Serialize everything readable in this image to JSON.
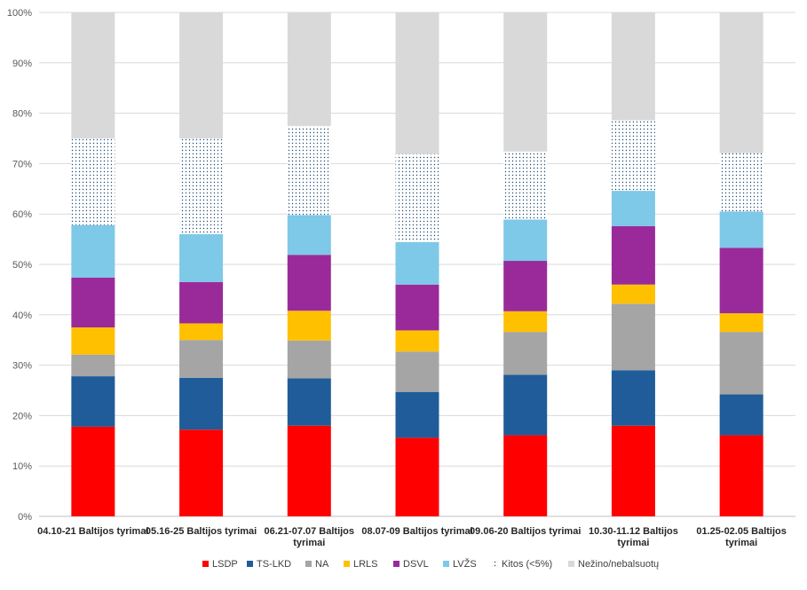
{
  "chart_data": {
    "type": "bar",
    "stacked": true,
    "categories": [
      "04.10-21 Baltijos tyrimai",
      "05.16-25 Baltijos tyrimai",
      "06.21-07.07 Baltijos tyrimai",
      "08.07-09 Baltijos tyrimai",
      "09.06-20 Baltijos tyrimai",
      "10.30-11.12 Baltijos tyrimai",
      "01.25-02.05 Baltijos tyrimai"
    ],
    "category_lines": [
      [
        "04.10-21 Baltijos tyrimai"
      ],
      [
        "05.16-25 Baltijos tyrimai"
      ],
      [
        "06.21-07.07 Baltijos",
        "tyrimai"
      ],
      [
        "08.07-09 Baltijos tyrimai"
      ],
      [
        "09.06-20 Baltijos tyrimai"
      ],
      [
        "10.30-11.12 Baltijos",
        "tyrimai"
      ],
      [
        "01.25-02.05 Baltijos",
        "tyrimai"
      ]
    ],
    "series": [
      {
        "name": "LSDP",
        "color": "#ff0000",
        "pattern": "solid",
        "values": [
          17.8,
          17.2,
          18.0,
          15.6,
          16.1,
          18.0,
          16.1
        ]
      },
      {
        "name": "TS-LKD",
        "color": "#1f5c99",
        "pattern": "solid",
        "values": [
          10.0,
          10.3,
          9.4,
          9.1,
          12.0,
          11.0,
          8.1
        ]
      },
      {
        "name": "NA",
        "color": "#a5a5a5",
        "pattern": "solid",
        "values": [
          4.3,
          7.5,
          7.5,
          8.0,
          8.5,
          13.2,
          12.4
        ]
      },
      {
        "name": "LRLS",
        "color": "#ffc000",
        "pattern": "solid",
        "values": [
          5.4,
          3.3,
          5.9,
          4.2,
          4.1,
          3.8,
          3.7
        ]
      },
      {
        "name": "DSVL",
        "color": "#9a2a9a",
        "pattern": "solid",
        "values": [
          9.9,
          8.2,
          11.1,
          9.1,
          10.0,
          11.6,
          13.0
        ]
      },
      {
        "name": "LVŽS",
        "color": "#7ec8e8",
        "pattern": "solid",
        "values": [
          10.4,
          9.5,
          7.9,
          8.4,
          8.2,
          7.0,
          7.2
        ]
      },
      {
        "name": "Kitos (<5%)",
        "color": "#1f4e79",
        "pattern": "dots",
        "values": [
          17.2,
          19.0,
          17.7,
          17.5,
          13.5,
          14.0,
          11.6
        ]
      },
      {
        "name": "Nežino/nebalsuotų",
        "color": "#d9d9d9",
        "pattern": "solid",
        "values": [
          25.0,
          25.0,
          22.5,
          28.1,
          27.6,
          21.4,
          27.9
        ]
      }
    ],
    "y_ticks": [
      "0%",
      "10%",
      "20%",
      "30%",
      "40%",
      "50%",
      "60%",
      "70%",
      "80%",
      "90%",
      "100%"
    ],
    "ylim": [
      0,
      100
    ],
    "grid": true,
    "legend_position": "bottom",
    "title": "",
    "xlabel": "",
    "ylabel": ""
  }
}
